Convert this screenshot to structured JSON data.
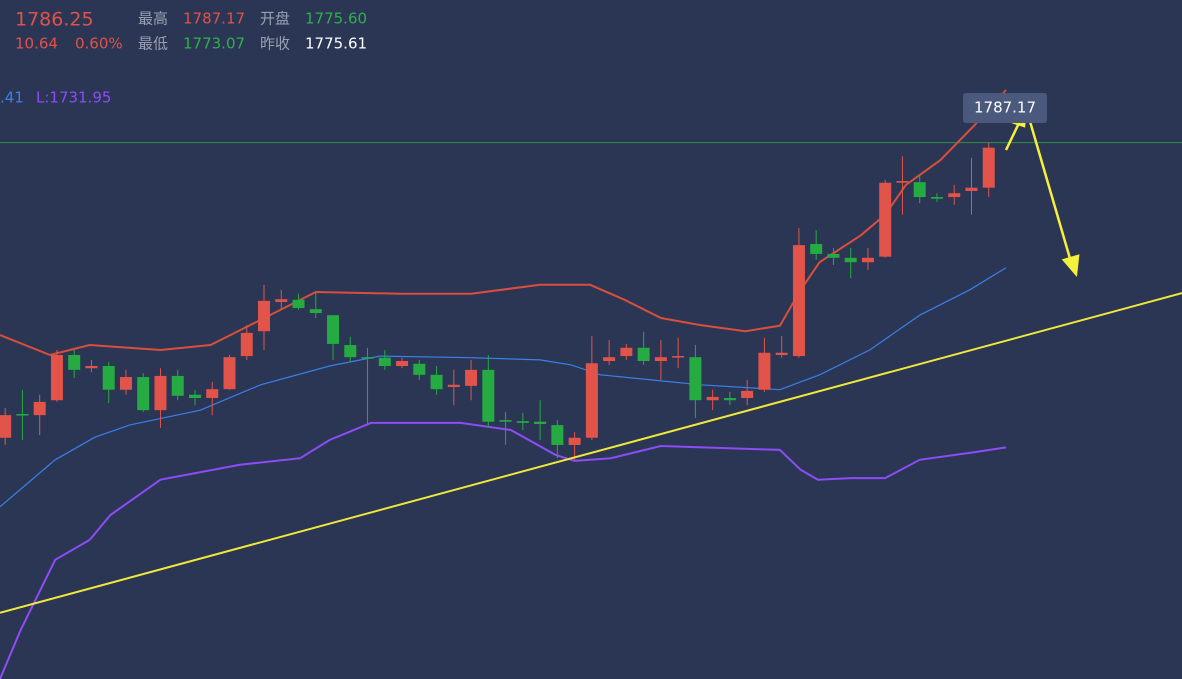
{
  "header": {
    "price": "1786.25",
    "change": "10.64",
    "change_pct": "0.60%",
    "high_label": "最高",
    "high": "1787.17",
    "open_label": "开盘",
    "open": "1775.60",
    "low_label": "最低",
    "low": "1773.07",
    "prev_close_label": "昨收",
    "prev_close": "1775.61"
  },
  "chart_data": {
    "type": "candlestick",
    "xlim": [
      -0.3,
      68.2
    ],
    "ylim": [
      1690,
      1813
    ],
    "up_color": "#e2544a",
    "down_color": "#25ab42",
    "candles": {
      "open": [
        1733.7,
        1738.0,
        1737.8,
        1740.5,
        1748.7,
        1746.3,
        1746.7,
        1742.4,
        1744.7,
        1738.7,
        1744.9,
        1741.5,
        1740.9,
        1742.5,
        1748.5,
        1753.0,
        1758.3,
        1758.7,
        1757.0,
        1755.9,
        1750.5,
        1748.3,
        1748.2,
        1746.7,
        1747.1,
        1745.1,
        1742.9,
        1743.1,
        1746.0,
        1736.9,
        1736.7,
        1736.6,
        1736.0,
        1732.4,
        1733.7,
        1747.6,
        1748.5,
        1750.0,
        1747.6,
        1748.3,
        1748.3,
        1740.5,
        1740.9,
        1740.9,
        1742.4,
        1748.7,
        1748.5,
        1768.8,
        1767.0,
        1766.3,
        1765.5,
        1766.5,
        1779.9,
        1780.0,
        1777.3,
        1777.3,
        1778.4,
        1779.0
      ],
      "high": [
        1739.1,
        1742.4,
        1741.5,
        1749.6,
        1749.6,
        1747.8,
        1747.4,
        1746.0,
        1745.4,
        1746.3,
        1746.0,
        1742.4,
        1743.8,
        1748.7,
        1754.1,
        1761.4,
        1760.5,
        1759.8,
        1759.9,
        1755.9,
        1752.0,
        1750.0,
        1749.6,
        1748.2,
        1747.8,
        1746.7,
        1746.0,
        1747.8,
        1748.7,
        1738.4,
        1738.2,
        1740.5,
        1736.9,
        1734.7,
        1752.1,
        1751.4,
        1750.7,
        1752.9,
        1751.4,
        1751.8,
        1750.5,
        1742.4,
        1742.0,
        1744.2,
        1751.8,
        1752.1,
        1771.7,
        1771.3,
        1768.1,
        1768.1,
        1768.1,
        1780.4,
        1784.7,
        1781.3,
        1778.0,
        1779.5,
        1784.4,
        1787.2
      ],
      "low": [
        1732.4,
        1733.3,
        1734.2,
        1740.2,
        1744.5,
        1745.6,
        1740.0,
        1741.5,
        1738.4,
        1735.5,
        1740.5,
        1739.6,
        1737.8,
        1742.4,
        1747.8,
        1749.6,
        1756.9,
        1756.9,
        1755.4,
        1747.8,
        1747.4,
        1736.0,
        1746.0,
        1746.3,
        1744.2,
        1741.5,
        1739.6,
        1740.5,
        1735.5,
        1732.4,
        1735.1,
        1733.3,
        1730.0,
        1729.7,
        1733.3,
        1746.9,
        1747.8,
        1746.9,
        1744.2,
        1746.3,
        1737.3,
        1738.7,
        1739.6,
        1739.6,
        1742.0,
        1748.2,
        1748.2,
        1765.9,
        1765.0,
        1762.6,
        1764.1,
        1766.3,
        1774.1,
        1776.2,
        1776.4,
        1775.9,
        1774.1,
        1777.3
      ],
      "close": [
        1737.8,
        1737.8,
        1740.2,
        1748.7,
        1746.0,
        1746.7,
        1742.4,
        1744.7,
        1738.7,
        1744.9,
        1741.3,
        1740.9,
        1742.5,
        1748.3,
        1752.7,
        1758.5,
        1758.8,
        1757.2,
        1756.3,
        1750.7,
        1748.3,
        1748.2,
        1746.7,
        1747.6,
        1745.1,
        1742.5,
        1743.3,
        1746.0,
        1736.6,
        1736.6,
        1736.4,
        1736.2,
        1732.4,
        1733.7,
        1747.2,
        1748.3,
        1750.0,
        1747.6,
        1748.3,
        1748.5,
        1740.5,
        1741.1,
        1740.5,
        1742.2,
        1749.1,
        1749.1,
        1768.6,
        1767.0,
        1766.3,
        1765.5,
        1766.3,
        1779.9,
        1780.2,
        1777.3,
        1777.0,
        1778.0,
        1779.0,
        1786.25
      ]
    },
    "lines": [
      {
        "color": "#d94f3d",
        "x": [
          -0.3,
          2.6,
          4.9,
          9.0,
          11.9,
          14.2,
          18.0,
          22.9,
          27.0,
          31.0,
          33.9,
          35.9,
          38.0,
          40.3,
          42.9,
          44.9,
          46.1,
          47.2,
          49.6,
          51.0,
          52.2,
          54.2,
          56.2,
          58.0
        ],
        "values": [
          1752.3,
          1748.7,
          1750.5,
          1749.6,
          1750.5,
          1754.1,
          1760.1,
          1759.8,
          1759.8,
          1761.4,
          1761.4,
          1758.7,
          1755.4,
          1754.1,
          1753.0,
          1754.0,
          1760.5,
          1765.5,
          1770.4,
          1774.1,
          1779.5,
          1784.0,
          1790.4,
          1796.7
        ]
      },
      {
        "color": "#3b7fe8",
        "x": [
          -0.3,
          2.9,
          5.2,
          7.2,
          11.3,
          14.8,
          18.8,
          21.7,
          27.0,
          31.0,
          32.8,
          34.5,
          40.3,
          44.9,
          47.2,
          50.1,
          53.0,
          55.9,
          58.0
        ],
        "values": [
          1721.2,
          1729.7,
          1733.8,
          1736.0,
          1738.7,
          1743.3,
          1746.7,
          1748.5,
          1748.2,
          1747.8,
          1746.9,
          1745.1,
          1743.3,
          1742.4,
          1745.1,
          1749.6,
          1755.9,
          1760.5,
          1764.5
        ]
      },
      {
        "color": "#8d4cf5",
        "x": [
          -0.3,
          0.9,
          2.9,
          4.9,
          6.1,
          9.0,
          13.6,
          17.1,
          18.8,
          21.2,
          26.4,
          29.3,
          31.9,
          33.0,
          35.1,
          38.0,
          44.9,
          46.1,
          47.1,
          49.0,
          51.0,
          53.0,
          56.2,
          58.0
        ],
        "values": [
          1690.0,
          1698.9,
          1711.6,
          1715.2,
          1719.7,
          1726.1,
          1728.8,
          1730.0,
          1733.3,
          1736.4,
          1736.4,
          1735.1,
          1730.6,
          1729.5,
          1730.0,
          1732.2,
          1731.5,
          1727.9,
          1726.1,
          1726.4,
          1726.4,
          1729.7,
          1731.1,
          1731.95
        ]
      }
    ],
    "trendline": {
      "color": "#f0e83a",
      "x": [
        -0.3,
        68.2
      ],
      "values": [
        1702.0,
        1759.9
      ]
    },
    "price_line": {
      "value": 1787.17,
      "color": "#2f8f4a"
    },
    "indicator_labels": [
      {
        "text": ".41",
        "color": "#3b7fe8"
      },
      {
        "text": "L:1731.95",
        "color": "#8d4cf5"
      }
    ]
  }
}
